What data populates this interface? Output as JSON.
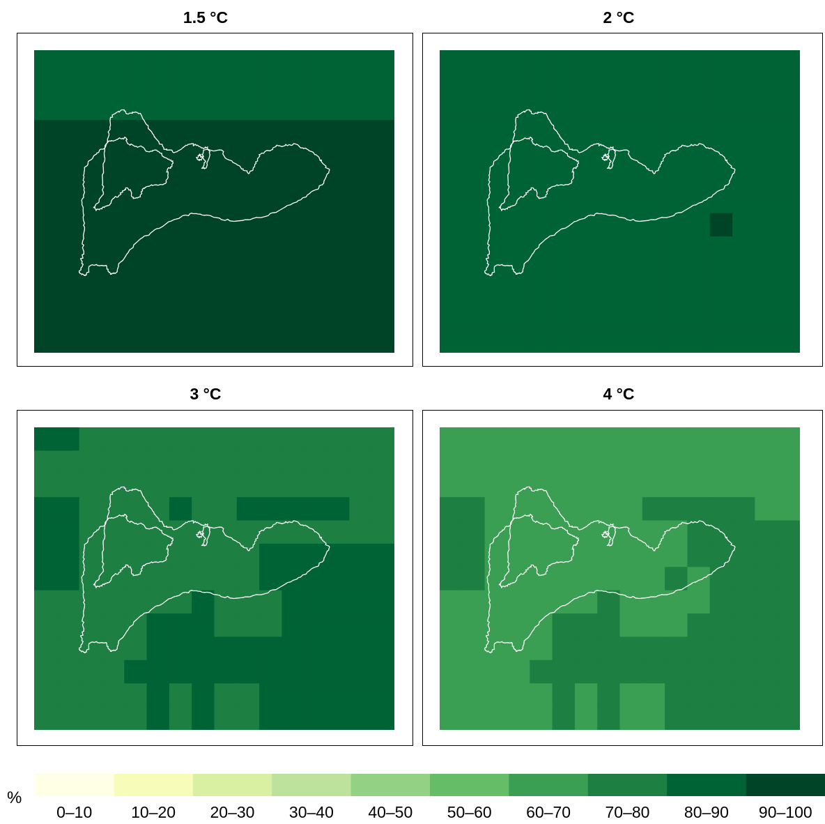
{
  "panels": [
    {
      "title": "1.5 °C",
      "bins": [
        [
          8,
          8,
          8,
          8,
          8,
          8,
          8,
          8,
          8,
          8,
          8,
          8,
          8,
          8,
          8,
          8
        ],
        [
          8,
          8,
          8,
          8,
          8,
          8,
          8,
          8,
          8,
          8,
          8,
          8,
          8,
          8,
          8,
          8
        ],
        [
          8,
          8,
          8,
          8,
          8,
          8,
          8,
          8,
          8,
          8,
          8,
          8,
          8,
          8,
          8,
          8
        ],
        [
          9,
          9,
          9,
          9,
          9,
          9,
          9,
          9,
          9,
          9,
          9,
          9,
          9,
          9,
          9,
          9
        ],
        [
          9,
          9,
          9,
          9,
          9,
          9,
          9,
          9,
          9,
          9,
          9,
          9,
          9,
          9,
          9,
          9
        ],
        [
          9,
          9,
          9,
          9,
          9,
          9,
          9,
          9,
          9,
          9,
          9,
          9,
          9,
          9,
          9,
          9
        ],
        [
          9,
          9,
          9,
          9,
          9,
          9,
          9,
          9,
          9,
          9,
          9,
          9,
          9,
          9,
          9,
          9
        ],
        [
          9,
          9,
          9,
          9,
          9,
          9,
          9,
          9,
          9,
          9,
          9,
          9,
          9,
          9,
          9,
          9
        ],
        [
          9,
          9,
          9,
          9,
          9,
          9,
          9,
          9,
          9,
          9,
          9,
          9,
          9,
          9,
          9,
          9
        ],
        [
          9,
          9,
          9,
          9,
          9,
          9,
          9,
          9,
          9,
          9,
          9,
          9,
          9,
          9,
          9,
          9
        ],
        [
          9,
          9,
          9,
          9,
          9,
          9,
          9,
          9,
          9,
          9,
          9,
          9,
          9,
          9,
          9,
          9
        ],
        [
          9,
          9,
          9,
          9,
          9,
          9,
          9,
          9,
          9,
          9,
          9,
          9,
          9,
          9,
          9,
          9
        ],
        [
          9,
          9,
          9,
          9,
          9,
          9,
          9,
          9,
          9,
          9,
          9,
          9,
          9,
          9,
          9,
          9
        ]
      ]
    },
    {
      "title": "2 °C",
      "bins": [
        [
          8,
          8,
          8,
          8,
          8,
          8,
          8,
          8,
          8,
          8,
          8,
          8,
          8,
          8,
          8,
          8
        ],
        [
          8,
          8,
          8,
          8,
          8,
          8,
          8,
          8,
          8,
          8,
          8,
          8,
          8,
          8,
          8,
          8
        ],
        [
          8,
          8,
          8,
          8,
          8,
          8,
          8,
          8,
          8,
          8,
          8,
          8,
          8,
          8,
          8,
          8
        ],
        [
          8,
          8,
          8,
          8,
          8,
          8,
          8,
          8,
          8,
          8,
          8,
          8,
          8,
          8,
          8,
          8
        ],
        [
          8,
          8,
          8,
          8,
          8,
          8,
          8,
          8,
          8,
          8,
          8,
          8,
          8,
          8,
          8,
          8
        ],
        [
          8,
          8,
          8,
          8,
          8,
          8,
          8,
          8,
          8,
          8,
          8,
          8,
          8,
          8,
          8,
          8
        ],
        [
          8,
          8,
          8,
          8,
          8,
          8,
          8,
          8,
          8,
          8,
          8,
          8,
          8,
          8,
          8,
          8
        ],
        [
          8,
          8,
          8,
          8,
          8,
          8,
          8,
          8,
          8,
          8,
          8,
          8,
          9,
          8,
          8,
          8
        ],
        [
          8,
          8,
          8,
          8,
          8,
          8,
          8,
          8,
          8,
          8,
          8,
          8,
          8,
          8,
          8,
          8
        ],
        [
          8,
          8,
          8,
          8,
          8,
          8,
          8,
          8,
          8,
          8,
          8,
          8,
          8,
          8,
          8,
          8
        ],
        [
          8,
          8,
          8,
          8,
          8,
          8,
          8,
          8,
          8,
          8,
          8,
          8,
          8,
          8,
          8,
          8
        ],
        [
          8,
          8,
          8,
          8,
          8,
          8,
          8,
          8,
          8,
          8,
          8,
          8,
          8,
          8,
          8,
          8
        ],
        [
          8,
          8,
          8,
          8,
          8,
          8,
          8,
          8,
          8,
          8,
          8,
          8,
          8,
          8,
          8,
          8
        ]
      ]
    },
    {
      "title": "3 °C",
      "bins": [
        [
          8,
          8,
          7,
          7,
          7,
          7,
          7,
          7,
          7,
          7,
          7,
          7,
          7,
          7,
          7,
          7
        ],
        [
          7,
          7,
          7,
          7,
          7,
          7,
          7,
          7,
          7,
          7,
          7,
          7,
          7,
          7,
          7,
          7
        ],
        [
          7,
          7,
          7,
          7,
          7,
          7,
          7,
          7,
          7,
          7,
          7,
          7,
          7,
          7,
          7,
          7
        ],
        [
          8,
          8,
          7,
          7,
          7,
          7,
          8,
          7,
          7,
          8,
          8,
          8,
          8,
          8,
          7,
          7
        ],
        [
          8,
          8,
          7,
          7,
          7,
          7,
          7,
          7,
          7,
          7,
          7,
          7,
          7,
          7,
          7,
          7
        ],
        [
          8,
          8,
          7,
          7,
          7,
          7,
          7,
          7,
          7,
          7,
          8,
          8,
          8,
          8,
          8,
          8
        ],
        [
          8,
          8,
          7,
          7,
          7,
          7,
          7,
          7,
          7,
          7,
          8,
          8,
          8,
          8,
          8,
          8
        ],
        [
          7,
          7,
          7,
          7,
          7,
          7,
          7,
          8,
          7,
          7,
          7,
          8,
          8,
          8,
          8,
          8
        ],
        [
          7,
          7,
          7,
          7,
          7,
          8,
          8,
          8,
          7,
          7,
          7,
          8,
          8,
          8,
          8,
          8
        ],
        [
          7,
          7,
          7,
          7,
          7,
          8,
          8,
          8,
          8,
          8,
          8,
          8,
          8,
          8,
          8,
          8
        ],
        [
          7,
          7,
          7,
          7,
          8,
          8,
          8,
          8,
          8,
          8,
          8,
          8,
          8,
          8,
          8,
          8
        ],
        [
          7,
          7,
          7,
          7,
          7,
          8,
          7,
          8,
          7,
          7,
          8,
          8,
          8,
          8,
          8,
          8
        ],
        [
          7,
          7,
          7,
          7,
          7,
          8,
          7,
          8,
          7,
          7,
          8,
          8,
          8,
          8,
          8,
          8
        ]
      ]
    },
    {
      "title": "4 °C",
      "bins": [
        [
          6,
          6,
          6,
          6,
          6,
          6,
          6,
          6,
          6,
          6,
          6,
          6,
          6,
          6,
          6,
          6
        ],
        [
          6,
          6,
          6,
          6,
          6,
          6,
          6,
          6,
          6,
          6,
          6,
          6,
          6,
          6,
          6,
          6
        ],
        [
          6,
          6,
          6,
          6,
          6,
          6,
          6,
          6,
          6,
          6,
          6,
          6,
          6,
          6,
          6,
          6
        ],
        [
          7,
          7,
          6,
          6,
          6,
          6,
          6,
          6,
          6,
          7,
          7,
          7,
          7,
          7,
          6,
          6
        ],
        [
          7,
          7,
          6,
          6,
          6,
          6,
          6,
          6,
          6,
          6,
          6,
          7,
          7,
          7,
          7,
          7
        ],
        [
          7,
          7,
          6,
          6,
          6,
          6,
          6,
          6,
          6,
          6,
          6,
          7,
          7,
          7,
          7,
          7
        ],
        [
          7,
          7,
          6,
          6,
          6,
          6,
          6,
          6,
          6,
          6,
          7,
          6,
          7,
          7,
          7,
          7
        ],
        [
          6,
          6,
          6,
          6,
          6,
          6,
          6,
          7,
          6,
          6,
          6,
          6,
          7,
          7,
          7,
          7
        ],
        [
          6,
          6,
          6,
          6,
          6,
          7,
          7,
          7,
          6,
          6,
          6,
          7,
          7,
          7,
          7,
          7
        ],
        [
          6,
          6,
          6,
          6,
          6,
          7,
          7,
          7,
          7,
          7,
          7,
          7,
          7,
          7,
          7,
          7
        ],
        [
          6,
          6,
          6,
          6,
          7,
          7,
          7,
          7,
          7,
          7,
          7,
          7,
          7,
          7,
          7,
          7
        ],
        [
          6,
          6,
          6,
          6,
          6,
          7,
          6,
          7,
          6,
          6,
          7,
          7,
          7,
          7,
          7,
          7
        ],
        [
          6,
          6,
          6,
          6,
          6,
          7,
          6,
          7,
          6,
          6,
          7,
          7,
          7,
          7,
          7,
          7
        ]
      ]
    }
  ],
  "legend": {
    "unit": "%",
    "classes": [
      {
        "label": "0–10",
        "color": "#ffffe5"
      },
      {
        "label": "10–20",
        "color": "#f7fcb9"
      },
      {
        "label": "20–30",
        "color": "#d9f0a3"
      },
      {
        "label": "30–40",
        "color": "#bde29b"
      },
      {
        "label": "40–50",
        "color": "#93d284"
      },
      {
        "label": "50–60",
        "color": "#66bd68"
      },
      {
        "label": "60–70",
        "color": "#3a9f52"
      },
      {
        "label": "70–80",
        "color": "#1d7f41"
      },
      {
        "label": "80–90",
        "color": "#006335"
      },
      {
        "label": "90–100",
        "color": "#004428"
      }
    ]
  },
  "outline_color": "#ffffff"
}
